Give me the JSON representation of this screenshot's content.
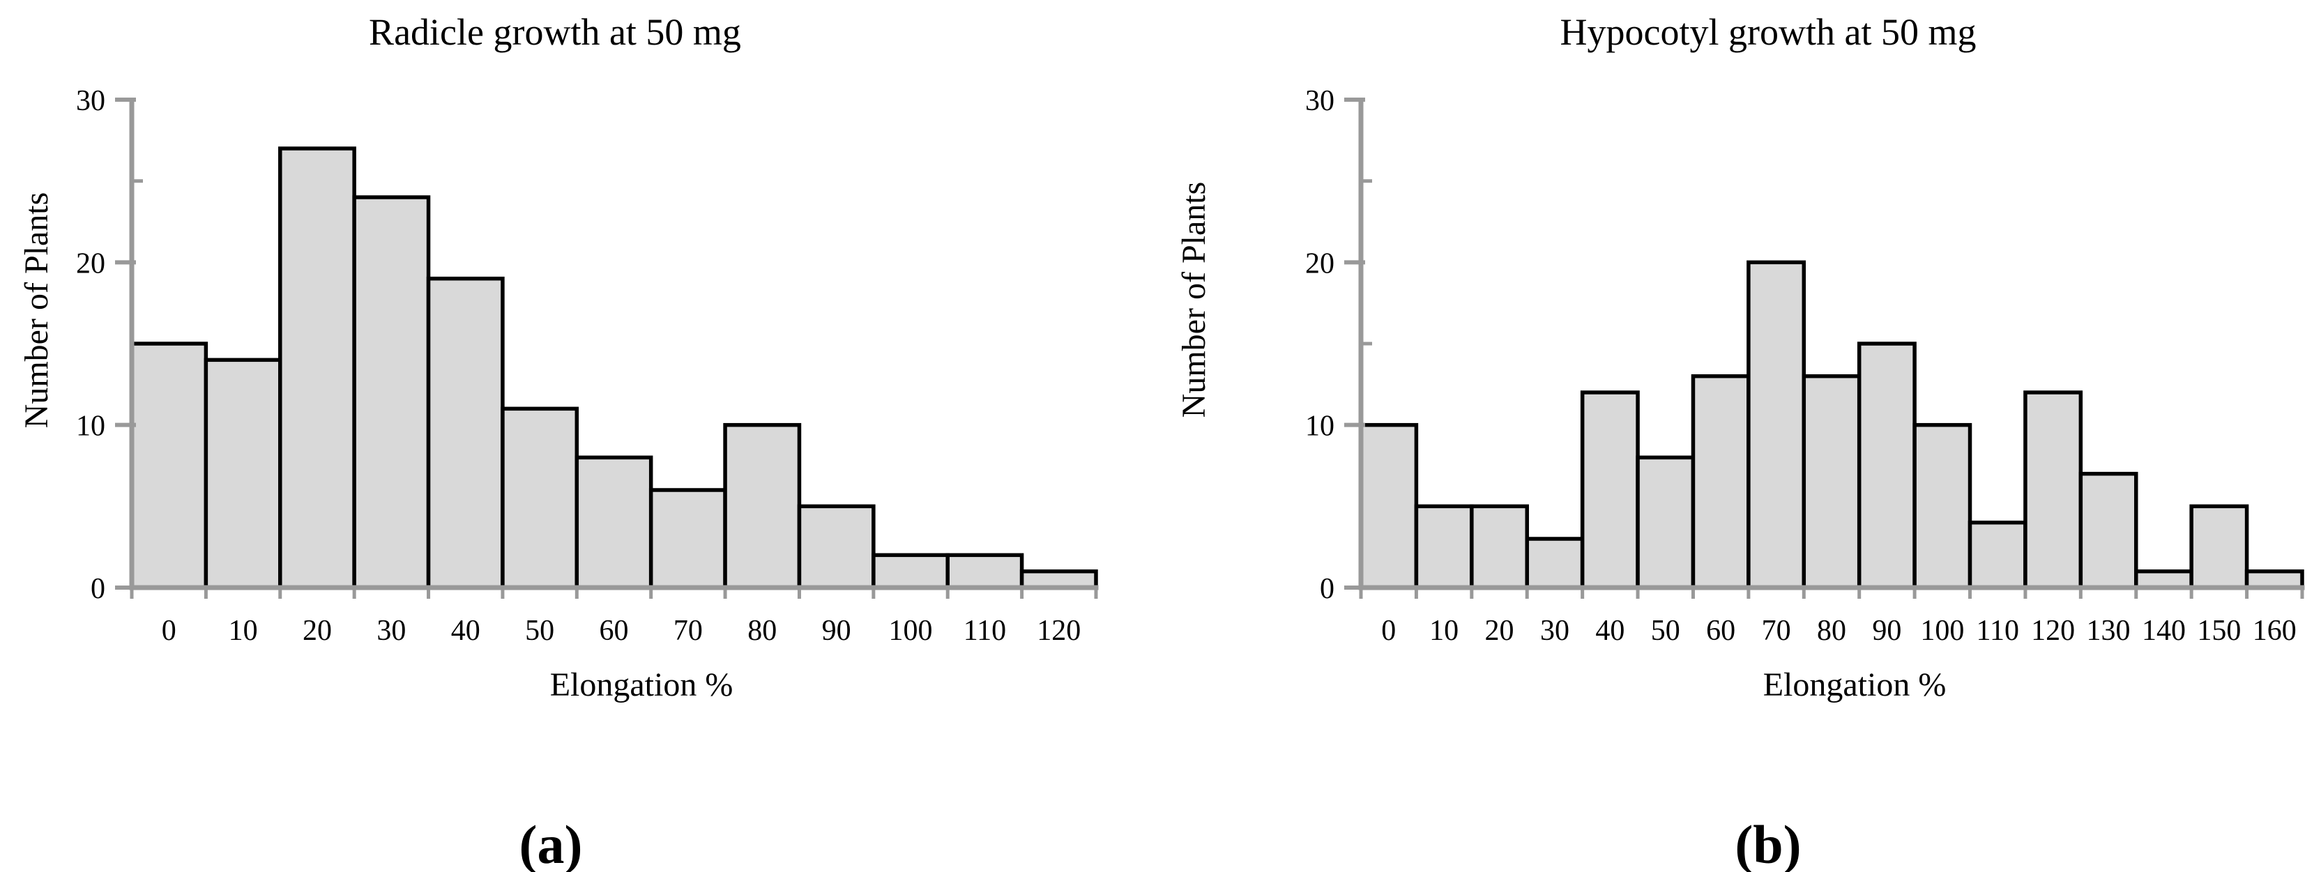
{
  "figure": {
    "background": "#ffffff",
    "description_panels": [
      "(a)",
      "(b)"
    ]
  },
  "chart_data": [
    {
      "type": "bar",
      "subtype": "histogram",
      "title": "Radicle growth at 50 mg",
      "xlabel": "Elongation %",
      "ylabel": "Number of Plants",
      "caption": "(a)",
      "categories": [
        "0",
        "10",
        "20",
        "30",
        "40",
        "50",
        "60",
        "70",
        "80",
        "90",
        "100",
        "110",
        "120"
      ],
      "values": [
        15,
        14,
        27,
        24,
        19,
        11,
        8,
        6,
        10,
        5,
        2,
        2,
        1
      ],
      "ylim": [
        0,
        30
      ],
      "yticks": [
        0,
        10,
        20,
        30
      ],
      "ytick_step": 10,
      "yminor_step": 5,
      "grid": false,
      "legend": "none",
      "bar_gap": 0,
      "bar_fill": "#d9d9d9",
      "bar_stroke": "#000000",
      "axis_color": "#999999",
      "text_color": "#000000"
    },
    {
      "type": "bar",
      "subtype": "histogram",
      "title": "Hypocotyl growth at 50 mg",
      "xlabel": "Elongation %",
      "ylabel": "Number of Plants",
      "caption": "(b)",
      "categories": [
        "0",
        "10",
        "20",
        "30",
        "40",
        "50",
        "60",
        "70",
        "80",
        "90",
        "100",
        "110",
        "120",
        "130",
        "140",
        "150",
        "160"
      ],
      "values": [
        10,
        5,
        5,
        3,
        12,
        8,
        13,
        20,
        13,
        15,
        10,
        4,
        12,
        7,
        1,
        5,
        1
      ],
      "ylim": [
        0,
        30
      ],
      "yticks": [
        0,
        10,
        20,
        30
      ],
      "ytick_step": 10,
      "yminor_step": 5,
      "grid": false,
      "legend": "none",
      "bar_gap": 0,
      "bar_fill": "#d9d9d9",
      "bar_stroke": "#000000",
      "axis_color": "#999999",
      "text_color": "#000000"
    }
  ]
}
